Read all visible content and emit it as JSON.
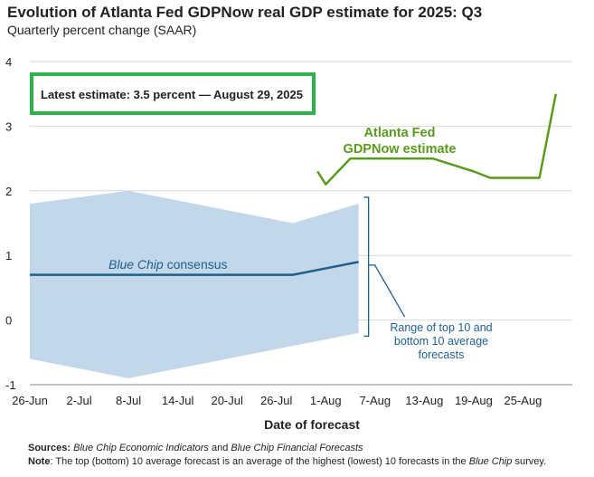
{
  "chart_data": {
    "type": "line",
    "title": "Evolution of Atlanta Fed GDPNow real GDP estimate for 2025: Q3",
    "subtitle": "Quarterly percent change (SAAR)",
    "xlabel": "Date of forecast",
    "ylabel": "",
    "ylim": [
      -1,
      4
    ],
    "yticks": [
      -1,
      0,
      1,
      2,
      3,
      4
    ],
    "xlim": [
      "2025-06-26",
      "2025-08-31"
    ],
    "xticks": [
      {
        "date": "2025-06-26",
        "label": "26-Jun"
      },
      {
        "date": "2025-07-02",
        "label": "2-Jul"
      },
      {
        "date": "2025-07-08",
        "label": "8-Jul"
      },
      {
        "date": "2025-07-14",
        "label": "14-Jul"
      },
      {
        "date": "2025-07-20",
        "label": "20-Jul"
      },
      {
        "date": "2025-07-26",
        "label": "26-Jul"
      },
      {
        "date": "2025-08-01",
        "label": "1-Aug"
      },
      {
        "date": "2025-08-07",
        "label": "7-Aug"
      },
      {
        "date": "2025-08-13",
        "label": "13-Aug"
      },
      {
        "date": "2025-08-19",
        "label": "19-Aug"
      },
      {
        "date": "2025-08-25",
        "label": "25-Aug"
      }
    ],
    "grid": "horizontal",
    "series": [
      {
        "name": "Atlanta Fed GDPNow estimate",
        "color": "#5b9a1e",
        "points": [
          {
            "x": "2025-07-31",
            "y": 2.3
          },
          {
            "x": "2025-08-01",
            "y": 2.1
          },
          {
            "x": "2025-08-04",
            "y": 2.5
          },
          {
            "x": "2025-08-14",
            "y": 2.5
          },
          {
            "x": "2025-08-19",
            "y": 2.3
          },
          {
            "x": "2025-08-21",
            "y": 2.2
          },
          {
            "x": "2025-08-27",
            "y": 2.2
          },
          {
            "x": "2025-08-29",
            "y": 3.5
          }
        ]
      },
      {
        "name": "Blue Chip consensus",
        "color": "#1f5f8b",
        "points": [
          {
            "x": "2025-06-26",
            "y": 0.7
          },
          {
            "x": "2025-07-28",
            "y": 0.7
          },
          {
            "x": "2025-08-05",
            "y": 0.9
          }
        ]
      }
    ],
    "range": {
      "name": "Range of top 10 and bottom 10 average forecasts",
      "color": "#c2d8ea",
      "upper": [
        {
          "x": "2025-06-26",
          "y": 1.8
        },
        {
          "x": "2025-07-08",
          "y": 2.0
        },
        {
          "x": "2025-07-28",
          "y": 1.5
        },
        {
          "x": "2025-08-05",
          "y": 1.8
        }
      ],
      "lower": [
        {
          "x": "2025-06-26",
          "y": -0.6
        },
        {
          "x": "2025-07-08",
          "y": -0.9
        },
        {
          "x": "2025-07-28",
          "y": -0.4
        },
        {
          "x": "2025-08-05",
          "y": -0.2
        }
      ]
    },
    "annotations": {
      "latest_estimate": "Latest estimate: 3.5 percent — August 29, 2025",
      "gdpnow_label": [
        "Atlanta Fed",
        "GDPNow estimate"
      ],
      "bluechip_label_italic": "Blue Chip",
      "bluechip_label_rest": " consensus",
      "range_label": [
        "Range of top 10 and",
        "bottom 10 average",
        "forecasts"
      ]
    },
    "colors": {
      "gdpnow": "#5b9a1e",
      "bluechip": "#1f5f8b",
      "range_fill": "#c2d8ea",
      "grid": "#d9d9d9",
      "highlight_box": "#2db34a"
    }
  },
  "notes": {
    "sources_label": "Sources:",
    "sources_italic_1": "Blue Chip Economic Indicators",
    "sources_mid": " and ",
    "sources_italic_2": "Blue Chip Financial Forecasts",
    "note_label": "Note",
    "note_text_1": ": The top (bottom) 10 average forecast is an average of the highest (lowest) 10 forecasts in the ",
    "note_italic": "Blue Chip",
    "note_text_2": " survey."
  }
}
